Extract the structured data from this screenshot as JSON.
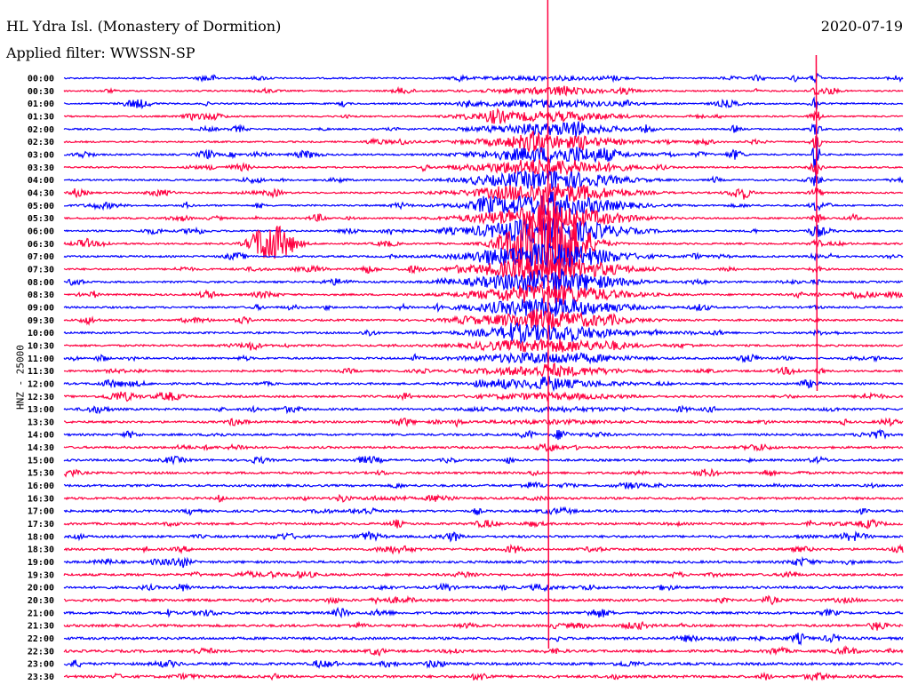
{
  "header": {
    "title": "HL Ydra Isl. (Monastery of Dormition)",
    "filter": "Applied filter: WWSSN-SP",
    "date": "2020-07-19"
  },
  "chart_data": {
    "type": "line",
    "title": "HL Ydra Isl. (Monastery of Dormition)",
    "ylabel": "HNZ - 25000",
    "xlabel": "",
    "minutes_per_line": 30,
    "colors": [
      "#0000ff",
      "#ff0040"
    ],
    "row_labels": [
      "00:00",
      "00:30",
      "01:00",
      "01:30",
      "02:00",
      "02:30",
      "03:00",
      "03:30",
      "04:00",
      "04:30",
      "05:00",
      "05:30",
      "06:00",
      "06:30",
      "07:00",
      "07:30",
      "08:00",
      "08:30",
      "09:00",
      "09:30",
      "10:00",
      "10:30",
      "11:00",
      "11:30",
      "12:00",
      "12:30",
      "13:00",
      "13:30",
      "14:00",
      "14:30",
      "15:00",
      "15:30",
      "16:00",
      "16:30",
      "17:00",
      "17:30",
      "18:00",
      "18:30",
      "19:00",
      "19:30",
      "20:00",
      "20:30",
      "21:00",
      "21:30",
      "22:00",
      "22:30",
      "23:00",
      "23:30"
    ],
    "events": [
      {
        "row": 13,
        "minute": 17.3,
        "amplitude": 60,
        "duration_min": 1.2
      },
      {
        "row": 13,
        "minute": 7.1,
        "amplitude": 14,
        "duration_min": 0.5
      },
      {
        "row": 13,
        "minute": 7.7,
        "amplitude": 16,
        "duration_min": 0.6
      },
      {
        "row": 6,
        "minute": 26.9,
        "amplitude": 30,
        "duration_min": 0.1
      },
      {
        "row": 6,
        "minute": 5.1,
        "amplitude": 5,
        "duration_min": 0.3
      },
      {
        "row": 6,
        "minute": 24.0,
        "amplitude": 5,
        "duration_min": 0.3
      },
      {
        "row": 22,
        "minute": 24.5,
        "amplitude": 4,
        "duration_min": 0.4
      },
      {
        "row": 26,
        "minute": 8.1,
        "amplitude": 3,
        "duration_min": 0.4
      },
      {
        "row": 36,
        "minute": 28.2,
        "amplitude": 4,
        "duration_min": 0.5
      },
      {
        "row": 10,
        "minute": 1.4,
        "amplitude": 3,
        "duration_min": 0.6
      }
    ]
  }
}
